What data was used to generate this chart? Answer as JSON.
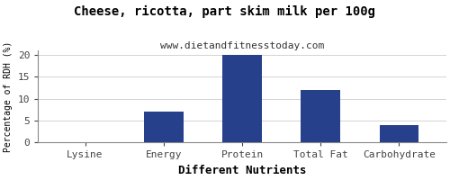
{
  "title": "Cheese, ricotta, part skim milk per 100g",
  "subtitle": "www.dietandfitnesstoday.com",
  "xlabel": "Different Nutrients",
  "ylabel": "Percentage of RDH (%)",
  "categories": [
    "Lysine",
    "Energy",
    "Protein",
    "Total Fat",
    "Carbohydrate"
  ],
  "values": [
    0,
    7,
    20,
    12,
    4
  ],
  "bar_color": "#27408B",
  "ylim": [
    0,
    21
  ],
  "yticks": [
    0,
    5,
    10,
    15,
    20
  ],
  "background_color": "#ffffff",
  "title_fontsize": 10,
  "subtitle_fontsize": 8,
  "xlabel_fontsize": 9,
  "ylabel_fontsize": 7,
  "tick_fontsize": 8
}
